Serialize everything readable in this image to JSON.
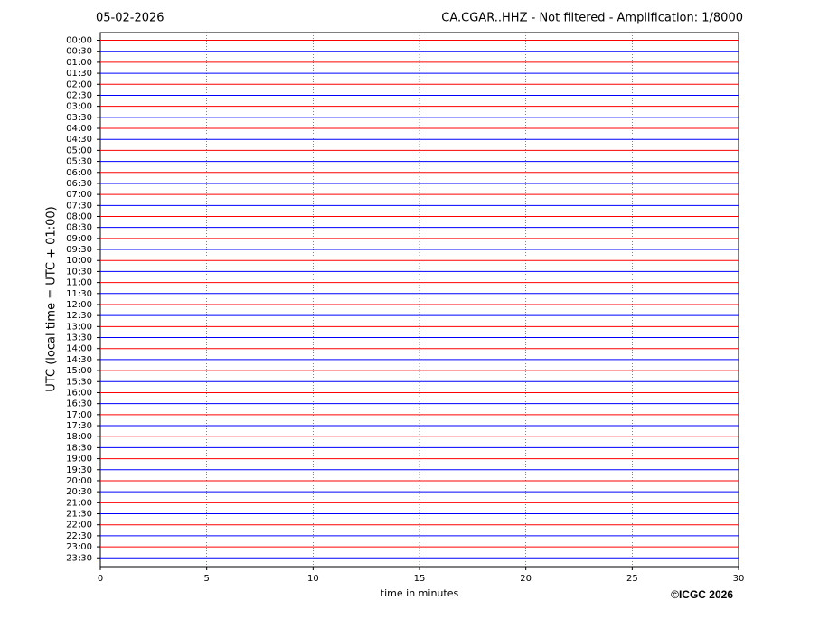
{
  "chart_data": {
    "type": "helicorder",
    "title_left": "05-02-2026",
    "title_right": "CA.CGAR..HHZ - Not filtered - Amplification: 1/8000",
    "ylabel": "UTC (local time = UTC + 01:00)",
    "xlabel": "time in minutes",
    "footer": "©ICGC 2026",
    "xlim": [
      0,
      30
    ],
    "xticks": [
      0,
      5,
      10,
      15,
      20,
      25,
      30
    ],
    "grid": true,
    "colors": [
      "#ff0000",
      "#0000ff"
    ],
    "categories": [
      "00:00",
      "00:30",
      "01:00",
      "01:30",
      "02:00",
      "02:30",
      "03:00",
      "03:30",
      "04:00",
      "04:30",
      "05:00",
      "05:30",
      "06:00",
      "06:30",
      "07:00",
      "07:30",
      "08:00",
      "08:30",
      "09:00",
      "09:30",
      "10:00",
      "10:30",
      "11:00",
      "11:30",
      "12:00",
      "12:30",
      "13:00",
      "13:30",
      "14:00",
      "14:30",
      "15:00",
      "15:30",
      "16:00",
      "16:30",
      "17:00",
      "17:30",
      "18:00",
      "18:30",
      "19:00",
      "19:30",
      "20:00",
      "20:30",
      "21:00",
      "21:30",
      "22:00",
      "22:30",
      "23:00",
      "23:30"
    ]
  }
}
